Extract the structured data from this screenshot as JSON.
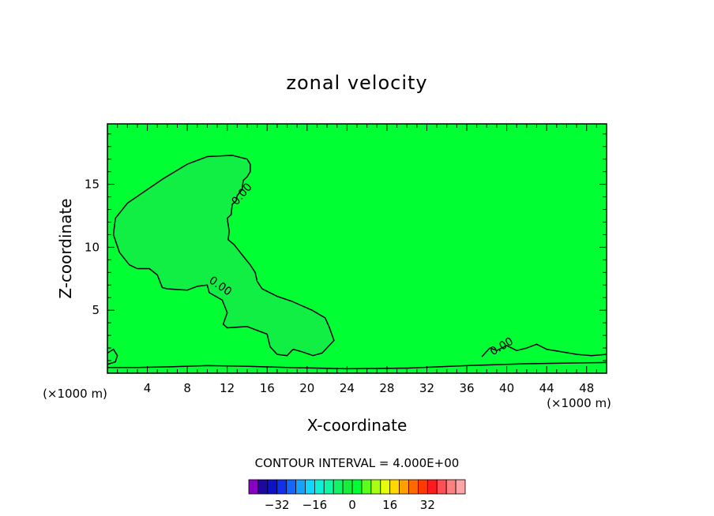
{
  "chart_data": {
    "type": "contour",
    "title": "zonal velocity",
    "xlabel": "X-coordinate",
    "ylabel": "Z-coordinate",
    "x_unit": "(×1000 m)",
    "y_unit": "(×1000 m)",
    "xlim": [
      0,
      50
    ],
    "ylim": [
      0,
      19.8
    ],
    "xticks": [
      4,
      8,
      12,
      16,
      20,
      24,
      28,
      32,
      36,
      40,
      44,
      48
    ],
    "yticks": [
      5,
      10,
      15
    ],
    "contour_interval_text": "CONTOUR INTERVAL = 4.000E+00",
    "contour_labels": [
      {
        "text": "0.00",
        "x": 13.5,
        "y": 14.2,
        "angle": -50
      },
      {
        "text": "0.00",
        "x": 11.3,
        "y": 6.9,
        "angle": 35
      },
      {
        "text": "0.00",
        "x": 39.5,
        "y": 2.1,
        "angle": -30
      }
    ],
    "background_level_color": "#00ff33",
    "negative_region_color": "#11ee44",
    "colorbar": {
      "colors": [
        "#8a00c2",
        "#1c0aa0",
        "#0d12c8",
        "#1030ee",
        "#1466ff",
        "#16a2ff",
        "#12d6ff",
        "#10f0d8",
        "#10f6a2",
        "#10f468",
        "#12f03a",
        "#00ff33",
        "#5aff1a",
        "#a8ff10",
        "#e6ff08",
        "#ffd800",
        "#ffa000",
        "#ff6a00",
        "#ff3a00",
        "#ff1a20",
        "#ff4e55",
        "#ff8080",
        "#ffa4a4"
      ],
      "range": [
        -44,
        48
      ],
      "tick_values": [
        -32,
        -16,
        0,
        16,
        32
      ],
      "tick_labels": [
        "−32",
        "−16",
        "0",
        "16",
        "32"
      ]
    },
    "regions": [
      {
        "name": "upper-left-negative-region",
        "points": [
          [
            14.3,
            16.6
          ],
          [
            14.0,
            17.0
          ],
          [
            12.5,
            17.3
          ],
          [
            10.0,
            17.2
          ],
          [
            8.0,
            16.6
          ],
          [
            5.5,
            15.4
          ],
          [
            2.0,
            13.5
          ],
          [
            0.8,
            12.3
          ],
          [
            0.6,
            11.0
          ],
          [
            1.2,
            9.6
          ],
          [
            2.2,
            8.6
          ],
          [
            3.0,
            8.3
          ],
          [
            4.2,
            8.3
          ],
          [
            5.0,
            7.8
          ],
          [
            5.5,
            6.8
          ],
          [
            6.0,
            6.7
          ],
          [
            8.0,
            6.6
          ],
          [
            9.0,
            6.9
          ],
          [
            10.0,
            7.0
          ],
          [
            10.2,
            6.4
          ],
          [
            11.5,
            5.8
          ],
          [
            12.0,
            4.8
          ],
          [
            11.6,
            3.9
          ],
          [
            12.0,
            3.6
          ],
          [
            14.0,
            3.7
          ],
          [
            16.0,
            3.1
          ],
          [
            16.3,
            2.1
          ],
          [
            17.0,
            1.5
          ],
          [
            18.0,
            1.4
          ],
          [
            18.6,
            1.9
          ],
          [
            19.5,
            1.7
          ],
          [
            20.6,
            1.4
          ],
          [
            21.5,
            1.6
          ],
          [
            22.7,
            2.6
          ],
          [
            22.2,
            3.7
          ],
          [
            21.8,
            4.4
          ],
          [
            20.5,
            5.0
          ],
          [
            18.5,
            5.7
          ],
          [
            17.0,
            6.1
          ],
          [
            15.5,
            6.7
          ],
          [
            15.0,
            7.3
          ],
          [
            14.8,
            8.0
          ],
          [
            14.3,
            8.6
          ],
          [
            13.5,
            9.4
          ],
          [
            12.7,
            10.2
          ],
          [
            12.1,
            10.6
          ],
          [
            12.2,
            11.3
          ],
          [
            12.0,
            12.3
          ],
          [
            12.4,
            12.6
          ],
          [
            12.5,
            13.4
          ],
          [
            12.9,
            13.7
          ],
          [
            13.0,
            14.1
          ],
          [
            13.5,
            14.6
          ],
          [
            13.6,
            15.3
          ],
          [
            14.0,
            15.6
          ],
          [
            14.3,
            16.0
          ]
        ]
      },
      {
        "name": "bottom-band-region",
        "points": [
          [
            0,
            0
          ],
          [
            50,
            0
          ],
          [
            50,
            0.9
          ],
          [
            48.0,
            0.8
          ],
          [
            44.0,
            0.7
          ],
          [
            38.0,
            0.5
          ],
          [
            34.0,
            0.3
          ],
          [
            30.0,
            0.2
          ],
          [
            24.0,
            0.2
          ],
          [
            16.0,
            0.35
          ],
          [
            12.0,
            0.55
          ],
          [
            10.0,
            0.5
          ],
          [
            6.0,
            0.45
          ],
          [
            2.0,
            0.55
          ],
          [
            0,
            0.5
          ]
        ]
      }
    ],
    "contour_lines": [
      {
        "name": "lower-right-contour",
        "points": [
          [
            37.5,
            1.3
          ],
          [
            38.3,
            2.0
          ],
          [
            39.0,
            1.8
          ],
          [
            40.0,
            2.2
          ],
          [
            41.0,
            1.8
          ],
          [
            42.0,
            2.0
          ],
          [
            43.0,
            2.3
          ],
          [
            44.0,
            1.9
          ],
          [
            45.5,
            1.7
          ],
          [
            47.0,
            1.5
          ],
          [
            48.5,
            1.4
          ],
          [
            50.0,
            1.5
          ]
        ]
      },
      {
        "name": "left-edge-contour",
        "points": [
          [
            0,
            1.6
          ],
          [
            0.6,
            1.9
          ],
          [
            1.0,
            1.4
          ],
          [
            0.8,
            0.9
          ],
          [
            0,
            0.7
          ]
        ]
      },
      {
        "name": "near-surface-contour",
        "points": [
          [
            0,
            0.45
          ],
          [
            3.0,
            0.45
          ],
          [
            6.0,
            0.5
          ],
          [
            10.0,
            0.6
          ],
          [
            14.0,
            0.55
          ],
          [
            18.0,
            0.45
          ],
          [
            24.0,
            0.35
          ],
          [
            30.0,
            0.4
          ],
          [
            36.0,
            0.6
          ],
          [
            42.0,
            0.75
          ],
          [
            50.0,
            0.85
          ]
        ]
      }
    ]
  }
}
